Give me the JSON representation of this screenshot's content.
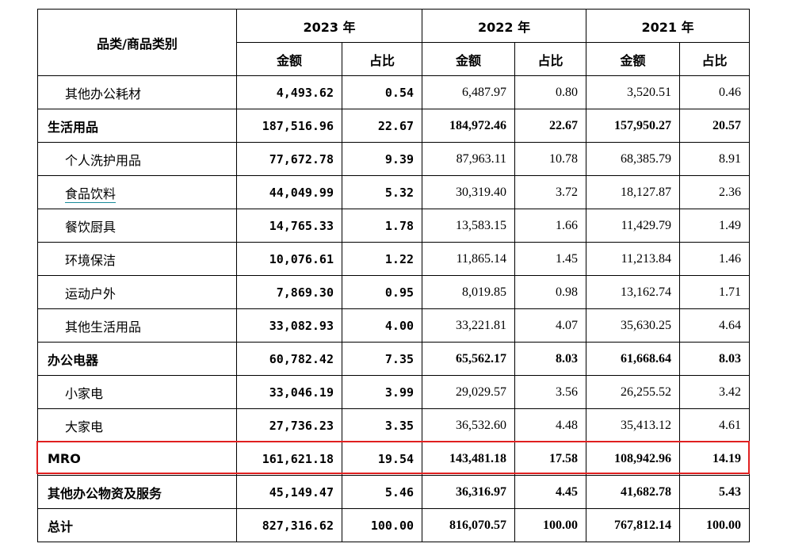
{
  "header": {
    "category_label": "品类/商品类别",
    "years": [
      "2023 年",
      "2022 年",
      "2021 年"
    ],
    "amount_label": "金额",
    "ratio_label": "占比"
  },
  "rows": [
    {
      "name": "其他办公耗材",
      "level": "sub",
      "v2023": "4,493.62",
      "p2023": "0.54",
      "v2022": "6,487.97",
      "p2022": "0.80",
      "v2021": "3,520.51",
      "p2021": "0.46"
    },
    {
      "name": "生活用品",
      "level": "main",
      "v2023": "187,516.96",
      "p2023": "22.67",
      "v2022": "184,972.46",
      "p2022": "22.67",
      "v2021": "157,950.27",
      "p2021": "20.57"
    },
    {
      "name": "个人洗护用品",
      "level": "sub",
      "v2023": "77,672.78",
      "p2023": "9.39",
      "v2022": "87,963.11",
      "p2022": "10.78",
      "v2021": "68,385.79",
      "p2021": "8.91"
    },
    {
      "name": "食品饮料",
      "level": "sub",
      "underline": true,
      "v2023": "44,049.99",
      "p2023": "5.32",
      "v2022": "30,319.40",
      "p2022": "3.72",
      "v2021": "18,127.87",
      "p2021": "2.36"
    },
    {
      "name": "餐饮厨具",
      "level": "sub",
      "v2023": "14,765.33",
      "p2023": "1.78",
      "v2022": "13,583.15",
      "p2022": "1.66",
      "v2021": "11,429.79",
      "p2021": "1.49"
    },
    {
      "name": "环境保洁",
      "level": "sub",
      "v2023": "10,076.61",
      "p2023": "1.22",
      "v2022": "11,865.14",
      "p2022": "1.45",
      "v2021": "11,213.84",
      "p2021": "1.46"
    },
    {
      "name": "运动户外",
      "level": "sub",
      "v2023": "7,869.30",
      "p2023": "0.95",
      "v2022": "8,019.85",
      "p2022": "0.98",
      "v2021": "13,162.74",
      "p2021": "1.71"
    },
    {
      "name": "其他生活用品",
      "level": "sub",
      "v2023": "33,082.93",
      "p2023": "4.00",
      "v2022": "33,221.81",
      "p2022": "4.07",
      "v2021": "35,630.25",
      "p2021": "4.64"
    },
    {
      "name": "办公电器",
      "level": "main",
      "v2023": "60,782.42",
      "p2023": "7.35",
      "v2022": "65,562.17",
      "p2022": "8.03",
      "v2021": "61,668.64",
      "p2021": "8.03"
    },
    {
      "name": "小家电",
      "level": "sub",
      "v2023": "33,046.19",
      "p2023": "3.99",
      "v2022": "29,029.57",
      "p2022": "3.56",
      "v2021": "26,255.52",
      "p2021": "3.42"
    },
    {
      "name": "大家电",
      "level": "sub",
      "v2023": "27,736.23",
      "p2023": "3.35",
      "v2022": "36,532.60",
      "p2022": "4.48",
      "v2021": "35,413.12",
      "p2021": "4.61"
    },
    {
      "name": "MRO",
      "level": "main",
      "highlight": true,
      "v2023": "161,621.18",
      "p2023": "19.54",
      "v2022": "143,481.18",
      "p2022": "17.58",
      "v2021": "108,942.96",
      "p2021": "14.19"
    },
    {
      "name": "其他办公物资及服务",
      "level": "main",
      "v2023": "45,149.47",
      "p2023": "5.46",
      "v2022": "36,316.97",
      "p2022": "4.45",
      "v2021": "41,682.78",
      "p2021": "5.43"
    },
    {
      "name": "总计",
      "level": "main",
      "v2023": "827,316.62",
      "p2023": "100.00",
      "v2022": "816,070.57",
      "p2022": "100.00",
      "v2021": "767,812.14",
      "p2021": "100.00"
    }
  ],
  "colors": {
    "highlight_border": "#e02020",
    "underline": "#1a8a9a"
  }
}
